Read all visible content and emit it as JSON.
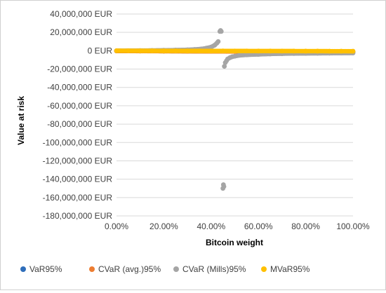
{
  "chart_data": {
    "type": "scatter",
    "xlabel": "Bitcoin weight",
    "ylabel": "Value at risk",
    "xlim": [
      0,
      1
    ],
    "ylim": [
      -180000000,
      40000000
    ],
    "x_ticks": [
      0,
      0.2,
      0.4,
      0.6,
      0.8,
      1.0
    ],
    "x_tick_labels": [
      "0.00%",
      "20.00%",
      "40.00%",
      "60.00%",
      "80.00%",
      "100.00%"
    ],
    "y_ticks": [
      40000000,
      20000000,
      0,
      -20000000,
      -40000000,
      -60000000,
      -80000000,
      -100000000,
      -120000000,
      -140000000,
      -160000000,
      -180000000
    ],
    "y_tick_labels": [
      "40,000,000 EUR",
      "20,000,000 EUR",
      "0 EUR",
      "-20,000,000 EUR",
      "-40,000,000 EUR",
      "-60,000,000 EUR",
      "-80,000,000 EUR",
      "-100,000,000 EUR",
      "-120,000,000 EUR",
      "-140,000,000 EUR",
      "-160,000,000 EUR",
      "-180,000,000 EUR"
    ],
    "grid": true,
    "legend_position": "bottom",
    "series": [
      {
        "name": "VaR95%",
        "color": "#2f6eba",
        "points": [
          [
            0.0,
            -200000
          ],
          [
            0.1,
            -300000
          ],
          [
            0.2,
            -400000
          ],
          [
            0.3,
            -500000
          ],
          [
            0.4,
            -600000
          ],
          [
            0.5,
            -700000
          ],
          [
            0.6,
            -800000
          ],
          [
            0.7,
            -900000
          ],
          [
            0.8,
            -1000000
          ],
          [
            0.9,
            -1100000
          ],
          [
            1.0,
            -1200000
          ]
        ]
      },
      {
        "name": "CVaR (avg.)95%",
        "color": "#ed7d31",
        "points": [
          [
            0.0,
            -300000
          ],
          [
            0.1,
            -400000
          ],
          [
            0.2,
            -500000
          ],
          [
            0.3,
            -600000
          ],
          [
            0.4,
            -700000
          ],
          [
            0.5,
            -800000
          ],
          [
            0.6,
            -900000
          ],
          [
            0.7,
            -1000000
          ],
          [
            0.8,
            -1100000
          ],
          [
            0.9,
            -1200000
          ],
          [
            1.0,
            -1300000
          ]
        ]
      },
      {
        "name": "CVaR (Mills)95%",
        "color": "#a5a5a5",
        "points": [
          [
            0.0,
            0
          ],
          [
            0.05,
            100000
          ],
          [
            0.1,
            200000
          ],
          [
            0.15,
            300000
          ],
          [
            0.2,
            500000
          ],
          [
            0.25,
            700000
          ],
          [
            0.3,
            1000000
          ],
          [
            0.33,
            1400000
          ],
          [
            0.36,
            2000000
          ],
          [
            0.38,
            2800000
          ],
          [
            0.4,
            4000000
          ],
          [
            0.415,
            6000000
          ],
          [
            0.425,
            8500000
          ],
          [
            0.43,
            10000000
          ],
          [
            0.437,
            21000000
          ],
          [
            0.44,
            22000000
          ],
          [
            0.443,
            21000000
          ],
          [
            0.45,
            -150000000
          ],
          [
            0.452,
            -146000000
          ],
          [
            0.454,
            -148000000
          ],
          [
            0.456,
            -17000000
          ],
          [
            0.46,
            -13000000
          ],
          [
            0.465,
            -11000000
          ],
          [
            0.47,
            -9000000
          ],
          [
            0.48,
            -7500000
          ],
          [
            0.49,
            -6500000
          ],
          [
            0.5,
            -6000000
          ],
          [
            0.52,
            -5000000
          ],
          [
            0.55,
            -4500000
          ],
          [
            0.6,
            -4000000
          ],
          [
            0.65,
            -3500000
          ],
          [
            0.7,
            -3200000
          ],
          [
            0.75,
            -3000000
          ],
          [
            0.8,
            -2900000
          ],
          [
            0.85,
            -2800000
          ],
          [
            0.9,
            -2700000
          ],
          [
            0.95,
            -2600000
          ],
          [
            1.0,
            -2500000
          ]
        ]
      },
      {
        "name": "MVaR95%",
        "color": "#ffc000",
        "points": [
          [
            0.0,
            0
          ],
          [
            0.05,
            -50000
          ],
          [
            0.1,
            -100000
          ],
          [
            0.15,
            -100000
          ],
          [
            0.2,
            -150000
          ],
          [
            0.25,
            -150000
          ],
          [
            0.3,
            -200000
          ],
          [
            0.35,
            -200000
          ],
          [
            0.4,
            -250000
          ],
          [
            0.45,
            -250000
          ],
          [
            0.5,
            -300000
          ],
          [
            0.55,
            -300000
          ],
          [
            0.6,
            -350000
          ],
          [
            0.65,
            -350000
          ],
          [
            0.7,
            -400000
          ],
          [
            0.75,
            -400000
          ],
          [
            0.8,
            -450000
          ],
          [
            0.85,
            -450000
          ],
          [
            0.9,
            -500000
          ],
          [
            0.95,
            -500000
          ],
          [
            1.0,
            -550000
          ]
        ]
      }
    ]
  }
}
